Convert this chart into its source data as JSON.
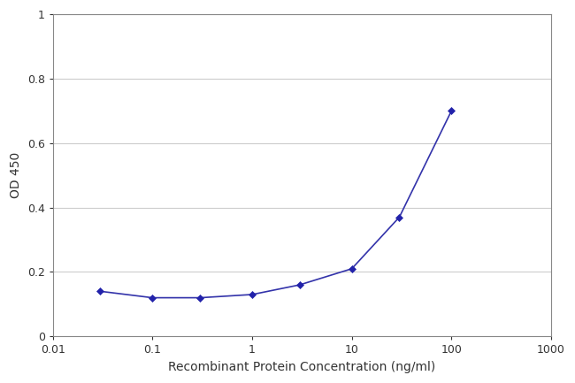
{
  "x": [
    0.03,
    0.1,
    0.3,
    1.0,
    3.0,
    10.0,
    30.0,
    100.0
  ],
  "y": [
    0.14,
    0.12,
    0.12,
    0.13,
    0.16,
    0.21,
    0.37,
    0.7
  ],
  "line_color": "#3333aa",
  "marker_color": "#2222aa",
  "marker_style": "D",
  "marker_size": 4,
  "line_width": 1.2,
  "xlabel": "Recombinant Protein Concentration (ng/ml)",
  "ylabel": "OD 450",
  "xlim_log": [
    0.01,
    1000
  ],
  "ylim": [
    0,
    1.0
  ],
  "yticks": [
    0,
    0.2,
    0.4,
    0.6,
    0.8,
    1.0
  ],
  "ytick_labels": [
    "0",
    "0.2",
    "0.4",
    "0.6",
    "0.8",
    "1"
  ],
  "xtick_positions": [
    0.01,
    0.1,
    1,
    10,
    100,
    1000
  ],
  "xtick_labels": [
    "0.01",
    "0.1",
    "1",
    "10",
    "100",
    "1000"
  ],
  "plot_bg_color": "#ffffff",
  "fig_bg_color": "#ffffff",
  "grid_color": "#cccccc",
  "spine_color": "#888888",
  "font_size_label": 10,
  "font_size_tick": 9,
  "tick_color": "#333333"
}
